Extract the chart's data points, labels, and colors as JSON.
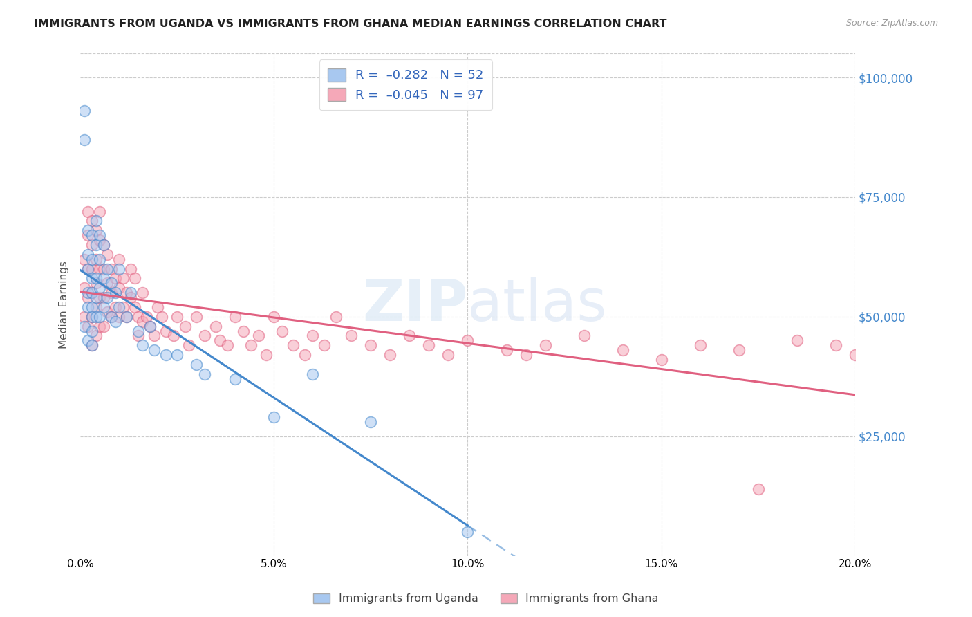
{
  "title": "IMMIGRANTS FROM UGANDA VS IMMIGRANTS FROM GHANA MEDIAN EARNINGS CORRELATION CHART",
  "source": "Source: ZipAtlas.com",
  "ylabel": "Median Earnings",
  "yticks": [
    0,
    25000,
    50000,
    75000,
    100000
  ],
  "ytick_labels": [
    "",
    "$25,000",
    "$50,000",
    "$75,000",
    "$100,000"
  ],
  "xlim": [
    0.0,
    0.2
  ],
  "ylim": [
    0,
    105000
  ],
  "color_uganda": "#A8C8F0",
  "color_ghana": "#F5A8B8",
  "color_line_uganda": "#4488CC",
  "color_line_ghana": "#E06080",
  "watermark_zip": "ZIP",
  "watermark_atlas": "atlas",
  "uganda_x": [
    0.001,
    0.001,
    0.001,
    0.002,
    0.002,
    0.002,
    0.002,
    0.002,
    0.002,
    0.003,
    0.003,
    0.003,
    0.003,
    0.003,
    0.003,
    0.003,
    0.003,
    0.004,
    0.004,
    0.004,
    0.004,
    0.004,
    0.005,
    0.005,
    0.005,
    0.005,
    0.006,
    0.006,
    0.006,
    0.007,
    0.007,
    0.008,
    0.008,
    0.009,
    0.009,
    0.01,
    0.01,
    0.012,
    0.013,
    0.015,
    0.016,
    0.018,
    0.019,
    0.022,
    0.025,
    0.03,
    0.032,
    0.04,
    0.05,
    0.06,
    0.075,
    0.1
  ],
  "uganda_y": [
    93000,
    87000,
    48000,
    68000,
    63000,
    60000,
    55000,
    52000,
    45000,
    67000,
    62000,
    58000,
    55000,
    52000,
    50000,
    47000,
    44000,
    70000,
    65000,
    58000,
    54000,
    50000,
    67000,
    62000,
    56000,
    50000,
    65000,
    58000,
    52000,
    60000,
    54000,
    57000,
    50000,
    55000,
    49000,
    60000,
    52000,
    50000,
    55000,
    47000,
    44000,
    48000,
    43000,
    42000,
    42000,
    40000,
    38000,
    37000,
    29000,
    38000,
    28000,
    5000
  ],
  "ghana_x": [
    0.001,
    0.001,
    0.001,
    0.002,
    0.002,
    0.002,
    0.002,
    0.002,
    0.003,
    0.003,
    0.003,
    0.003,
    0.003,
    0.003,
    0.004,
    0.004,
    0.004,
    0.004,
    0.004,
    0.005,
    0.005,
    0.005,
    0.005,
    0.005,
    0.006,
    0.006,
    0.006,
    0.006,
    0.007,
    0.007,
    0.007,
    0.008,
    0.008,
    0.008,
    0.009,
    0.009,
    0.01,
    0.01,
    0.01,
    0.011,
    0.011,
    0.012,
    0.012,
    0.013,
    0.013,
    0.014,
    0.014,
    0.015,
    0.015,
    0.016,
    0.016,
    0.017,
    0.018,
    0.019,
    0.02,
    0.021,
    0.022,
    0.024,
    0.025,
    0.027,
    0.028,
    0.03,
    0.032,
    0.035,
    0.036,
    0.038,
    0.04,
    0.042,
    0.044,
    0.046,
    0.048,
    0.05,
    0.052,
    0.055,
    0.058,
    0.06,
    0.063,
    0.066,
    0.07,
    0.075,
    0.08,
    0.085,
    0.09,
    0.095,
    0.1,
    0.11,
    0.115,
    0.12,
    0.13,
    0.14,
    0.15,
    0.16,
    0.17,
    0.175,
    0.185,
    0.195,
    0.2
  ],
  "ghana_y": [
    62000,
    56000,
    50000,
    72000,
    67000,
    60000,
    54000,
    48000,
    70000,
    65000,
    60000,
    55000,
    50000,
    44000,
    68000,
    62000,
    57000,
    52000,
    46000,
    72000,
    66000,
    60000,
    54000,
    48000,
    65000,
    60000,
    54000,
    48000,
    63000,
    57000,
    51000,
    60000,
    55000,
    50000,
    58000,
    52000,
    62000,
    56000,
    50000,
    58000,
    52000,
    55000,
    50000,
    60000,
    54000,
    58000,
    52000,
    50000,
    46000,
    55000,
    49000,
    50000,
    48000,
    46000,
    52000,
    50000,
    47000,
    46000,
    50000,
    48000,
    44000,
    50000,
    46000,
    48000,
    45000,
    44000,
    50000,
    47000,
    44000,
    46000,
    42000,
    50000,
    47000,
    44000,
    42000,
    46000,
    44000,
    50000,
    46000,
    44000,
    42000,
    46000,
    44000,
    42000,
    45000,
    43000,
    42000,
    44000,
    46000,
    43000,
    41000,
    44000,
    43000,
    14000,
    45000,
    44000,
    42000
  ]
}
